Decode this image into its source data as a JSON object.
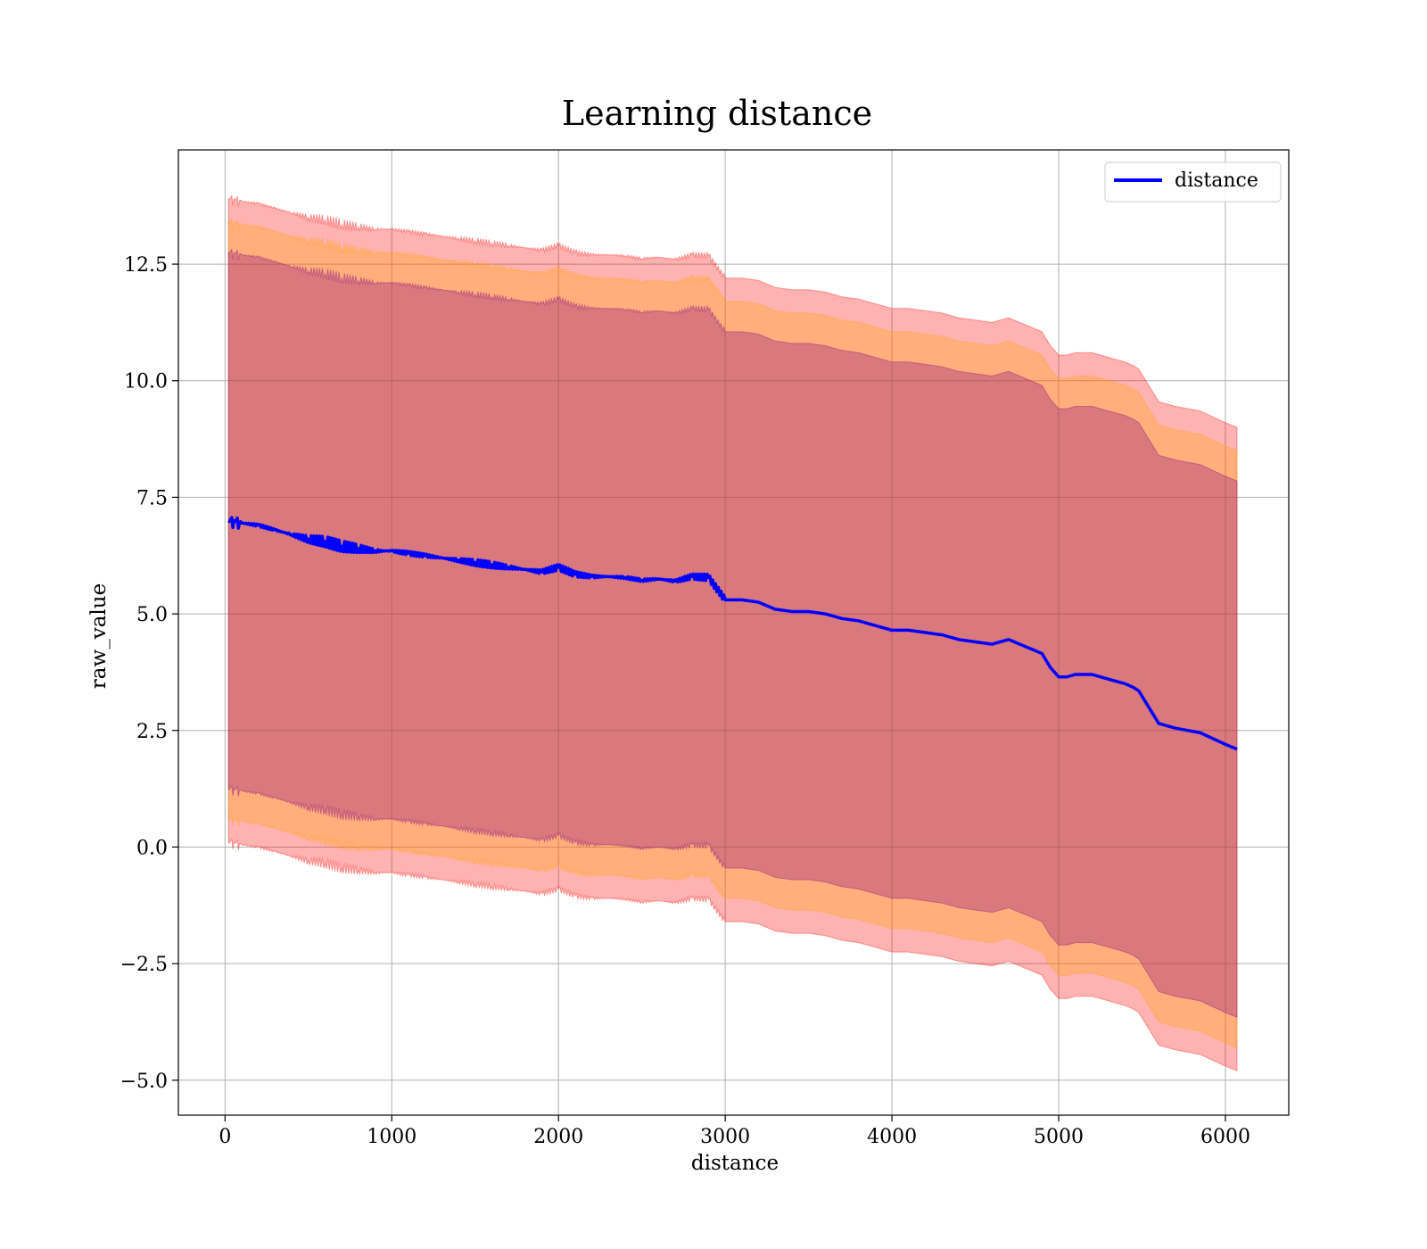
{
  "chart_data": {
    "type": "line",
    "title": "Learning distance",
    "xlabel": "distance",
    "ylabel": "raw_value",
    "xlim": [
      -280,
      6380
    ],
    "ylim": [
      -5.75,
      14.95
    ],
    "xticks": [
      0,
      1000,
      2000,
      3000,
      4000,
      5000,
      6000
    ],
    "xtick_labels": [
      "0",
      "1000",
      "2000",
      "3000",
      "4000",
      "5000",
      "6000"
    ],
    "yticks": [
      -5.0,
      -2.5,
      0.0,
      2.5,
      5.0,
      7.5,
      10.0,
      12.5
    ],
    "ytick_labels": [
      "−5.0",
      "−2.5",
      "0.0",
      "2.5",
      "5.0",
      "7.5",
      "10.0",
      "12.5"
    ],
    "grid": true,
    "legend": {
      "placement": "upper right",
      "entries": [
        "distance"
      ]
    },
    "series": [
      {
        "name": "distance",
        "color": "#0000ff",
        "x": [
          20,
          100,
          200,
          300,
          400,
          500,
          600,
          700,
          800,
          900,
          1000,
          1100,
          1200,
          1300,
          1400,
          1500,
          1600,
          1700,
          1800,
          1900,
          2000,
          2100,
          2200,
          2300,
          2400,
          2500,
          2600,
          2700,
          2800,
          2900,
          3000,
          3100,
          3200,
          3300,
          3400,
          3500,
          3600,
          3700,
          3800,
          3900,
          4000,
          4100,
          4200,
          4300,
          4400,
          4500,
          4600,
          4700,
          4800,
          4900,
          4950,
          5000,
          5050,
          5100,
          5150,
          5200,
          5250,
          5300,
          5350,
          5400,
          5450,
          5480,
          5600,
          5700,
          5850,
          6000,
          6070
        ],
        "y": [
          7.0,
          6.95,
          6.9,
          6.8,
          6.7,
          6.6,
          6.55,
          6.45,
          6.4,
          6.35,
          6.35,
          6.3,
          6.25,
          6.2,
          6.15,
          6.1,
          6.05,
          6.0,
          5.95,
          5.9,
          6.0,
          5.85,
          5.8,
          5.8,
          5.78,
          5.72,
          5.75,
          5.7,
          5.8,
          5.78,
          5.3,
          5.3,
          5.25,
          5.1,
          5.05,
          5.05,
          5.0,
          4.9,
          4.85,
          4.75,
          4.65,
          4.65,
          4.6,
          4.55,
          4.45,
          4.4,
          4.35,
          4.45,
          4.3,
          4.15,
          3.85,
          3.65,
          3.65,
          3.7,
          3.7,
          3.7,
          3.65,
          3.6,
          3.55,
          3.5,
          3.42,
          3.35,
          2.65,
          2.55,
          2.45,
          2.2,
          2.1
        ]
      }
    ],
    "bands": [
      {
        "name": "outer",
        "color": "#ff0000",
        "opacity": 0.3,
        "half_width": 6.9
      },
      {
        "name": "middle",
        "color": "#ffa500",
        "opacity": 0.3,
        "half_width": 6.4
      },
      {
        "name": "inner",
        "color": "#800080",
        "opacity": 0.3,
        "half_width": 5.75
      }
    ]
  }
}
